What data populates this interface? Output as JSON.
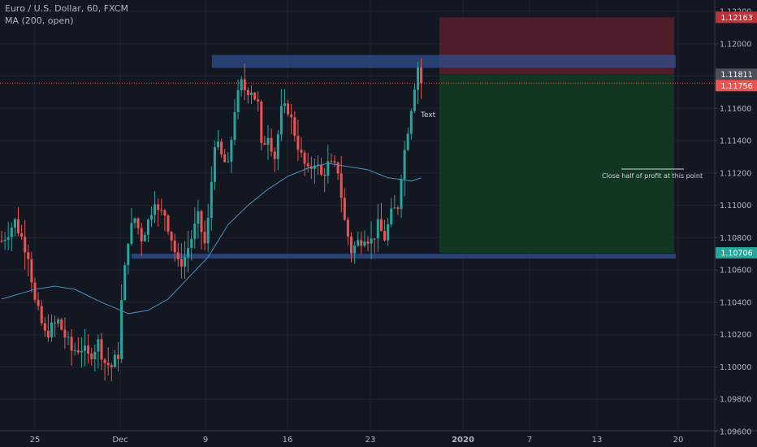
{
  "header": {
    "symbol_title": "Euro / U.S. Dollar, 60, FXCM",
    "indicator_title": "MA (200, open)"
  },
  "colors": {
    "background": "#131722",
    "up_candle": "#26a69a",
    "down_candle": "#ef5350",
    "ma_line": "#4a90b8",
    "zone": "#2f4f8c",
    "stop_zone": "#5a1f2a",
    "target_zone": "#123b22",
    "axis_text": "#b2b5be"
  },
  "annotations": {
    "text_label": "Text",
    "note": "Close half of profit at this point"
  },
  "chart_data": {
    "type": "candlestick",
    "symbol": "Euro / U.S. Dollar",
    "timeframe": "60",
    "source": "FXCM",
    "indicator": "MA (200, open)",
    "y_axis": {
      "range": [
        1.096,
        1.122
      ],
      "tick_labels": [
        "1.12200",
        "1.12000",
        "1.11800",
        "1.11600",
        "1.11400",
        "1.11200",
        "1.11000",
        "1.10800",
        "1.10600",
        "1.10400",
        "1.10200",
        "1.10000",
        "1.09800",
        "1.09600"
      ],
      "tick_values": [
        1.122,
        1.12,
        1.118,
        1.116,
        1.114,
        1.112,
        1.11,
        1.108,
        1.106,
        1.104,
        1.102,
        1.1,
        1.098,
        1.096
      ]
    },
    "x_axis": {
      "tick_labels": [
        "25",
        "Dec",
        "9",
        "16",
        "23",
        "2020",
        "7",
        "13",
        "20"
      ]
    },
    "price_labels": [
      {
        "label": "1.12163",
        "value": 1.12163,
        "kind": "stop"
      },
      {
        "label": "1.11811",
        "value": 1.11811,
        "kind": "entry"
      },
      {
        "label": "1.11756",
        "value": 1.11756,
        "kind": "last"
      },
      {
        "label": "1.10706",
        "value": 1.10706,
        "kind": "target"
      }
    ],
    "zones": [
      {
        "name": "resistance",
        "low": 1.1185,
        "high": 1.1193
      },
      {
        "name": "support",
        "low": 1.1067,
        "high": 1.107
      }
    ],
    "position": {
      "type": "short",
      "entry": 1.11811,
      "stop": 1.12163,
      "target": 1.10706
    },
    "price_path": [
      [
        0,
        1.1078
      ],
      [
        4,
        1.109
      ],
      [
        8,
        1.107
      ],
      [
        10,
        1.104
      ],
      [
        13,
        1.102
      ],
      [
        17,
        1.1028
      ],
      [
        21,
        1.101
      ],
      [
        24,
        1.1012
      ],
      [
        26,
        1.1006
      ],
      [
        29,
        1.1015
      ],
      [
        31,
        1.1003
      ],
      [
        33,
        1.1
      ],
      [
        35,
        1.1008
      ],
      [
        36,
        1.104
      ],
      [
        38,
        1.108
      ],
      [
        40,
        1.1092
      ],
      [
        42,
        1.108
      ],
      [
        44,
        1.109
      ],
      [
        46,
        1.1105
      ],
      [
        47,
        1.1095
      ],
      [
        49,
        1.1095
      ],
      [
        51,
        1.108
      ],
      [
        53,
        1.1063
      ],
      [
        55,
        1.1068
      ],
      [
        57,
        1.108
      ],
      [
        59,
        1.1092
      ],
      [
        61,
        1.1076
      ],
      [
        62,
        1.109
      ],
      [
        64,
        1.114
      ],
      [
        66,
        1.113
      ],
      [
        68,
        1.1123
      ],
      [
        70,
        1.116
      ],
      [
        72,
        1.1175
      ],
      [
        73,
        1.1172
      ],
      [
        75,
        1.1172
      ],
      [
        77,
        1.1162
      ],
      [
        78,
        1.1135
      ],
      [
        80,
        1.1145
      ],
      [
        82,
        1.113
      ],
      [
        84,
        1.1158
      ],
      [
        86,
        1.116
      ],
      [
        88,
        1.1145
      ],
      [
        90,
        1.113
      ],
      [
        92,
        1.112
      ],
      [
        94,
        1.1128
      ],
      [
        96,
        1.1118
      ],
      [
        98,
        1.1125
      ],
      [
        101,
        1.1122
      ],
      [
        103,
        1.109
      ],
      [
        105,
        1.1072
      ],
      [
        107,
        1.1077
      ],
      [
        109,
        1.1082
      ],
      [
        111,
        1.1078
      ],
      [
        113,
        1.1087
      ],
      [
        115,
        1.108
      ],
      [
        117,
        1.1094
      ],
      [
        119,
        1.11
      ],
      [
        120,
        1.112
      ],
      [
        122,
        1.1148
      ],
      [
        124,
        1.1175
      ],
      [
        125,
        1.1186
      ],
      [
        126,
        1.1176
      ]
    ],
    "ma_path": [
      [
        0,
        1.1042
      ],
      [
        5,
        1.1045
      ],
      [
        10,
        1.1048
      ],
      [
        16,
        1.105
      ],
      [
        22,
        1.1048
      ],
      [
        30,
        1.104
      ],
      [
        38,
        1.1033
      ],
      [
        44,
        1.1035
      ],
      [
        50,
        1.1042
      ],
      [
        56,
        1.1055
      ],
      [
        62,
        1.1068
      ],
      [
        68,
        1.1088
      ],
      [
        74,
        1.11
      ],
      [
        80,
        1.111
      ],
      [
        86,
        1.1118
      ],
      [
        92,
        1.1123
      ],
      [
        98,
        1.1126
      ],
      [
        104,
        1.1124
      ],
      [
        110,
        1.1122
      ],
      [
        116,
        1.1117
      ],
      [
        120,
        1.1116
      ],
      [
        123,
        1.1115
      ],
      [
        126,
        1.1117
      ]
    ]
  }
}
